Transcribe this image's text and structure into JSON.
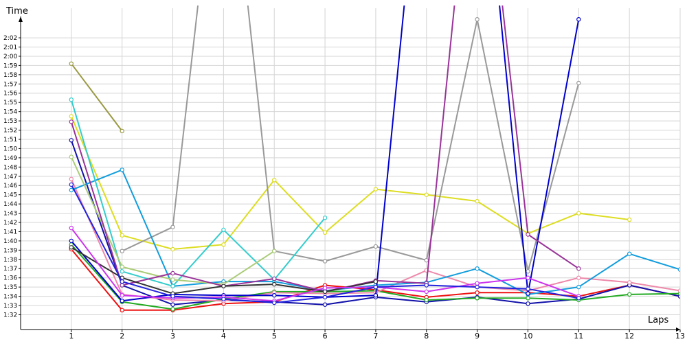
{
  "chart_data": {
    "type": "line",
    "ylabel": "Time",
    "xlabel": "Laps",
    "x": [
      1,
      2,
      3,
      4,
      5,
      6,
      7,
      8,
      9,
      10,
      11,
      12,
      13
    ],
    "y_ticks": [
      "1:32",
      "1:33",
      "1:34",
      "1:35",
      "1:36",
      "1:37",
      "1:38",
      "1:39",
      "1:40",
      "1:41",
      "1:42",
      "1:43",
      "1:44",
      "1:45",
      "1:46",
      "1:47",
      "1:48",
      "1:49",
      "1:50",
      "1:51",
      "1:52",
      "1:53",
      "1:54",
      "1:55",
      "1:56",
      "1:57",
      "1:58",
      "1:59",
      "2:00",
      "2:01",
      "2:02"
    ],
    "y_tick_seconds": [
      92,
      93,
      94,
      95,
      96,
      97,
      98,
      99,
      100,
      101,
      102,
      103,
      104,
      105,
      106,
      107,
      108,
      109,
      110,
      111,
      112,
      113,
      114,
      115,
      116,
      117,
      118,
      119,
      120,
      121,
      122
    ],
    "ylim": [
      90.4,
      125.5
    ],
    "xlim": [
      0,
      13
    ],
    "grid": true,
    "series": [
      {
        "color": "#ee1111",
        "values": [
          99.1,
          92.5,
          92.5,
          93.2,
          93.4,
          95.2,
          94.7,
          93.9,
          94.4,
          94.4,
          94.0,
          95.2,
          94.0
        ]
      },
      {
        "color": "#1111aa",
        "values": [
          110.9,
          95.2,
          93.1,
          93.6,
          93.4,
          93.1,
          93.9,
          93.4,
          93.9,
          93.2,
          93.7,
          95.2,
          94.0
        ]
      },
      {
        "color": "#22aa22",
        "values": [
          99.6,
          93.4,
          92.6,
          93.7,
          94.5,
          94.5,
          94.6,
          93.6,
          93.8,
          93.8,
          93.6,
          94.2,
          94.3
        ]
      },
      {
        "color": "#ee88aa",
        "values": [
          106.7,
          94.2,
          93.6,
          93.5,
          94.4,
          94.3,
          94.4,
          96.8,
          95.0,
          94.6,
          96.0,
          95.5,
          94.6
        ]
      },
      {
        "color": "#dddd22",
        "values": [
          113.5,
          100.6,
          99.1,
          99.6,
          106.6,
          100.9,
          105.6,
          105.0,
          104.3,
          100.8,
          103.0,
          102.3,
          null
        ]
      },
      {
        "color": "#999999",
        "values": [
          null,
          98.9,
          101.5,
          150,
          98.9,
          97.8,
          99.4,
          97.9,
          124,
          96.7,
          117.1,
          null,
          null
        ]
      },
      {
        "color": "#119ddd",
        "values": [
          105.5,
          107.7,
          95.1,
          95.6,
          95.6,
          94.6,
          95.2,
          95.5,
          97.0,
          94.2,
          95.0,
          98.6,
          96.9
        ]
      },
      {
        "color": "#33cccc",
        "values": [
          115.3,
          96.7,
          95.1,
          101.2,
          95.8,
          102.5,
          null,
          null,
          null,
          null,
          null,
          null,
          null
        ]
      },
      {
        "color": "#999944",
        "values": [
          119.2,
          111.9,
          null,
          null,
          null,
          null,
          null,
          null,
          null,
          null,
          null,
          null,
          null
        ]
      },
      {
        "color": "#aacc77",
        "values": [
          109.1,
          97.2,
          95.8,
          95.3,
          98.9,
          null,
          null,
          null,
          null,
          null,
          null,
          null,
          null
        ]
      },
      {
        "color": "#0000cc",
        "values": [
          100,
          93.5,
          94.2,
          94.1,
          94.1,
          93.9,
          94.1,
          150,
          150,
          94.3,
          124,
          null,
          null
        ]
      },
      {
        "color": "#993399",
        "values": [
          112.9,
          95.2,
          96.5,
          95.1,
          95.9,
          94.5,
          95.7,
          95.4,
          150,
          100.7,
          97.0,
          null,
          null
        ]
      },
      {
        "color": "#333333",
        "values": [
          99.3,
          96.0,
          94.3,
          95.1,
          95.3,
          94.5,
          95.6,
          null,
          null,
          null,
          null,
          null,
          null
        ]
      },
      {
        "color": "#cc33ee",
        "values": [
          101.4,
          94.1,
          93.8,
          93.9,
          93.5,
          94.9,
          95.0,
          94.5,
          95.4,
          96.0,
          94.0,
          null,
          null
        ]
      },
      {
        "color": "#2222dd",
        "values": [
          106.1,
          95.6,
          94.0,
          93.7,
          93.3,
          93.9,
          95.0,
          95.2,
          95.0,
          94.8,
          93.8,
          null,
          null
        ]
      }
    ]
  }
}
